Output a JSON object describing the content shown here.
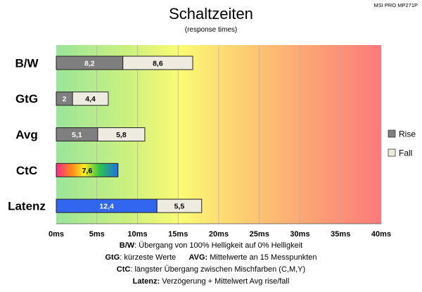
{
  "chart_data": {
    "type": "bar",
    "title": "Schaltzeiten",
    "subtitle": "(response times)",
    "model_label": "MSI PRO MP271P",
    "categories": [
      "B/W",
      "GtG",
      "Avg",
      "CtC",
      "Latenz"
    ],
    "series": [
      {
        "name": "Rise",
        "values": [
          8.2,
          2,
          5.1,
          null,
          null
        ],
        "labels": [
          "8,2",
          "2",
          "5,1",
          null,
          null
        ],
        "color": "#7f7f7f"
      },
      {
        "name": "Fall",
        "values": [
          8.6,
          4.4,
          5.8,
          null,
          5.5
        ],
        "labels": [
          "8,6",
          "4,4",
          "5,8",
          null,
          "5,5"
        ],
        "color": "#eeece1"
      },
      {
        "values": [
          null,
          null,
          null,
          7.6,
          null
        ],
        "labels": [
          null,
          null,
          null,
          "7,6",
          null
        ],
        "color": "rainbow"
      },
      {
        "values": [
          null,
          null,
          null,
          null,
          12.4
        ],
        "labels": [
          null,
          null,
          null,
          null,
          "12,4"
        ],
        "color": "#3366ee"
      }
    ],
    "stacked": true,
    "orientation": "horizontal",
    "xlim": [
      0,
      40
    ],
    "xticks": [
      0,
      5,
      10,
      15,
      20,
      25,
      30,
      35,
      40
    ],
    "xtick_labels": [
      "0ms",
      "5ms",
      "10ms",
      "15ms",
      "20ms",
      "25ms",
      "30ms",
      "35ms",
      "40ms"
    ],
    "grid": true,
    "legend_position": "right",
    "background": "gradient green-yellow-red"
  },
  "footer": {
    "line1_key": "B/W",
    "line1_text": ":  Übergang von 100% Helligkeit auf 0% Helligkeit",
    "line2_key_a": "GtG",
    "line2_text_a": ": kürzeste  Werte",
    "line2_key_b": "AVG:",
    "line2_text_b": " Mittelwerte  an 15 Messpunkten",
    "line3_key": "CtC",
    "line3_text": ": längster Übergang  zwischen Mischfarben (C,M,Y)",
    "line4_key": "Latenz:",
    "line4_text": " Verzögerung  + Mittelwert  Avg rise/fall"
  }
}
